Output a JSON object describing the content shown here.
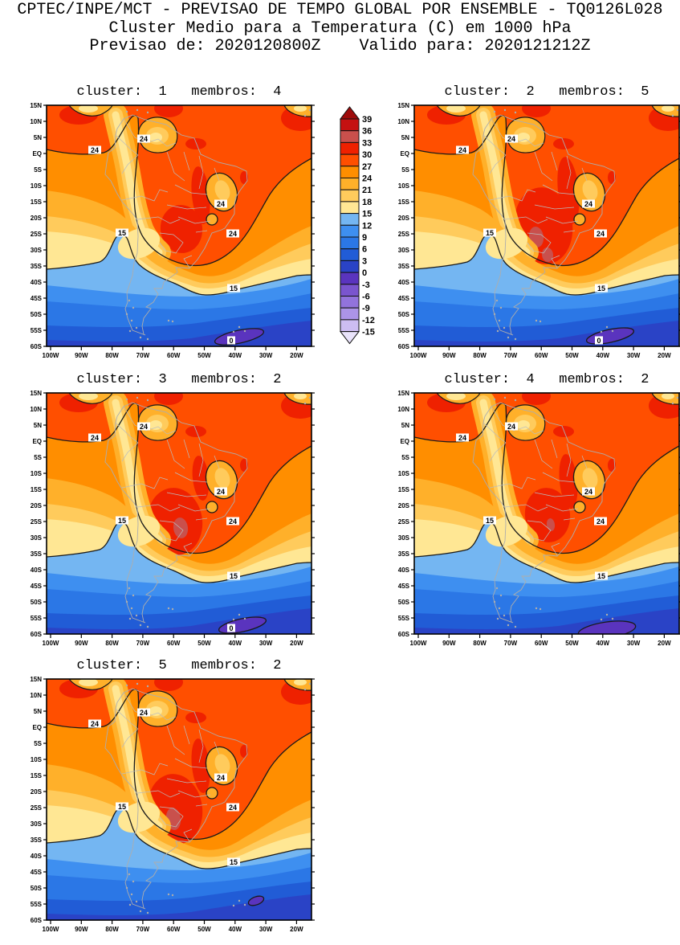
{
  "header": {
    "line1": "CPTEC/INPE/MCT - PREVISAO DE TEMPO GLOBAL POR ENSEMBLE - TQ0126L028",
    "line2": "Cluster Medio para a Temperatura (C) em 1000 hPa",
    "line3": "Previsao de: 2020120800Z    Valido para: 2020121212Z"
  },
  "panels": [
    {
      "id": "cluster-1",
      "cluster": 1,
      "membros": 4,
      "title": "cluster:  1   membros:  4",
      "variant": "p1"
    },
    {
      "id": "cluster-2",
      "cluster": 2,
      "membros": 5,
      "title": "cluster:  2   membros:  5",
      "variant": "p2"
    },
    {
      "id": "cluster-3",
      "cluster": 3,
      "membros": 2,
      "title": "cluster:  3   membros:  2",
      "variant": "p3"
    },
    {
      "id": "cluster-4",
      "cluster": 4,
      "membros": 2,
      "title": "cluster:  4   membros:  2",
      "variant": "p4"
    },
    {
      "id": "cluster-5",
      "cluster": 5,
      "membros": 2,
      "title": "cluster:  5   membros:  2",
      "variant": "p5"
    }
  ],
  "map_axes": {
    "lat_labels": [
      "15N",
      "10N",
      "5N",
      "EQ",
      "5S",
      "10S",
      "15S",
      "20S",
      "25S",
      "30S",
      "35S",
      "40S",
      "45S",
      "50S",
      "55S",
      "60S"
    ],
    "lon_labels": [
      "100W",
      "90W",
      "80W",
      "70W",
      "60W",
      "50W",
      "40W",
      "30W",
      "20W"
    ]
  },
  "contour_labels": {
    "warm": "24",
    "mid": "15",
    "cold": "0"
  },
  "colorbar": {
    "levels": [
      "39",
      "36",
      "33",
      "30",
      "27",
      "24",
      "21",
      "18",
      "15",
      "12",
      "9",
      "6",
      "3",
      "0",
      "-3",
      "-6",
      "-9",
      "-12",
      "-15"
    ],
    "cell_colors": [
      "#C51111",
      "#C9504C",
      "#EF2100",
      "#FF4F00",
      "#FF8E00",
      "#FFB02A",
      "#FFCB5C",
      "#FFE794",
      "#74B6F2",
      "#3E8FF0",
      "#2B77E6",
      "#215CD6",
      "#2A43C6",
      "#5A34BE",
      "#7A55CE",
      "#9273DC",
      "#AC94E8",
      "#CDBDF2"
    ],
    "arrow_top_color": "#9E0B0B",
    "arrow_bottom_color": "#E9E3FA"
  },
  "chart_data": {
    "type": "heatmap",
    "subtype": "filled-contour-map-ensemble-clusters",
    "title": "CPTEC/INPE/MCT - PREVISAO DE TEMPO GLOBAL POR ENSEMBLE - TQ0126L028",
    "subtitle": "Cluster Medio para a Temperatura (C) em 1000 hPa",
    "init_time": "2020120800Z",
    "valid_time": "2020121212Z",
    "model": "TQ0126L028",
    "variable": "Temperatura",
    "units": "C",
    "level": "1000 hPa",
    "panels": [
      {
        "cluster": 1,
        "membros": 4
      },
      {
        "cluster": 2,
        "membros": 5
      },
      {
        "cluster": 3,
        "membros": 2
      },
      {
        "cluster": 4,
        "membros": 2
      },
      {
        "cluster": 5,
        "membros": 2
      }
    ],
    "x": {
      "label": "longitude",
      "ticks": [
        "100W",
        "90W",
        "80W",
        "70W",
        "60W",
        "50W",
        "40W",
        "30W",
        "20W"
      ],
      "range_deg_west": [
        100,
        13
      ]
    },
    "y": {
      "label": "latitude",
      "ticks": [
        "15N",
        "10N",
        "5N",
        "EQ",
        "5S",
        "10S",
        "15S",
        "20S",
        "25S",
        "30S",
        "35S",
        "40S",
        "45S",
        "50S",
        "55S",
        "60S"
      ],
      "range_deg": [
        15,
        -60
      ]
    },
    "color_scale_levels_c": [
      39,
      36,
      33,
      30,
      27,
      24,
      21,
      18,
      15,
      12,
      9,
      6,
      3,
      0,
      -3,
      -6,
      -9,
      -12,
      -15
    ],
    "labeled_contours_c": [
      24,
      15,
      0
    ],
    "field_summary": "Warm (27-33C, locally >30C) air over tropical/central Brazil; 24C contour along Andes and SE Atlantic; 15-18C band near 30-35S; temperatures decrease southward to 0-3C near 60S with a sub-0C pocket near 55S/35W",
    "legend_position": "between top two panels",
    "grid": false
  }
}
